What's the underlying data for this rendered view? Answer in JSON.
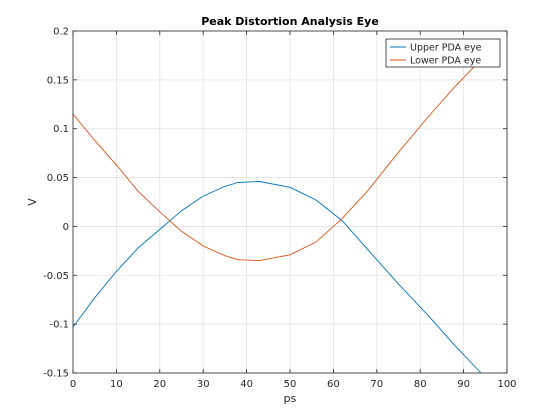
{
  "chart_data": {
    "type": "line",
    "title": "Peak Distortion Analysis Eye",
    "xlabel": "ps",
    "ylabel": "V",
    "xlim": [
      0,
      100
    ],
    "ylim": [
      -0.15,
      0.2
    ],
    "xticks": [
      "0",
      "10",
      "20",
      "30",
      "40",
      "50",
      "60",
      "70",
      "80",
      "90",
      "100"
    ],
    "yticks": [
      "-0.15",
      "-0.1",
      "-0.05",
      "0",
      "0.05",
      "0.1",
      "0.15",
      "0.2"
    ],
    "grid": true,
    "legend_position": "top-right",
    "series": [
      {
        "name": "Upper PDA eye",
        "color": "#0072bd",
        "x": [
          0,
          5,
          10,
          15,
          20,
          25,
          30,
          35,
          38,
          43,
          50,
          56,
          62,
          68,
          75,
          82,
          88,
          94
        ],
        "y": [
          -0.103,
          -0.073,
          -0.046,
          -0.022,
          -0.003,
          0.016,
          0.031,
          0.041,
          0.045,
          0.046,
          0.04,
          0.027,
          0.006,
          -0.024,
          -0.059,
          -0.092,
          -0.122,
          -0.15
        ]
      },
      {
        "name": "Lower PDA eye",
        "color": "#d95319",
        "x": [
          0,
          5,
          10,
          15,
          20,
          25,
          30,
          35,
          38,
          43,
          50,
          56,
          62,
          68,
          75,
          82,
          88,
          93
        ],
        "y": [
          0.115,
          0.088,
          0.063,
          0.036,
          0.015,
          -0.005,
          -0.02,
          -0.03,
          -0.034,
          -0.035,
          -0.029,
          -0.016,
          0.008,
          0.037,
          0.076,
          0.113,
          0.143,
          0.166
        ]
      }
    ]
  }
}
